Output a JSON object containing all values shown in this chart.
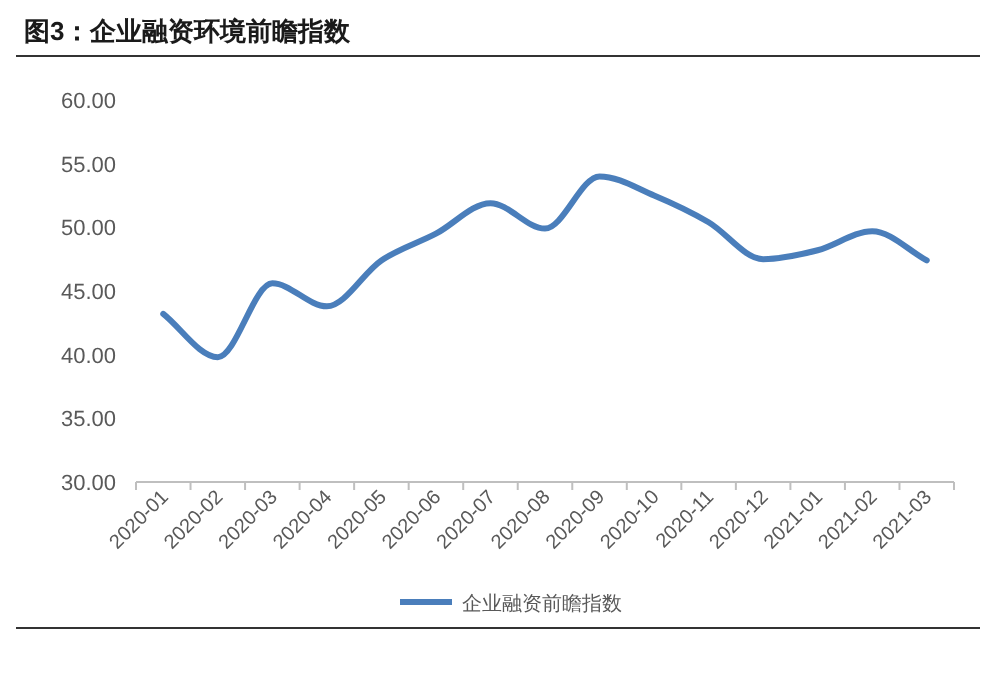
{
  "chart_data": {
    "type": "line",
    "title": "图3：企业融资环境前瞻指数",
    "categories": [
      "2020-01",
      "2020-02",
      "2020-03",
      "2020-04",
      "2020-05",
      "2020-06",
      "2020-07",
      "2020-08",
      "2020-09",
      "2020-10",
      "2020-11",
      "2020-12",
      "2021-01",
      "2021-02",
      "2021-03"
    ],
    "series": [
      {
        "name": "企业融资前瞻指数",
        "color": "#4a7ebb",
        "values": [
          43.2,
          39.8,
          45.6,
          43.8,
          47.4,
          49.5,
          51.9,
          49.9,
          54.0,
          52.5,
          50.4,
          47.5,
          48.2,
          49.7,
          47.4
        ]
      }
    ],
    "ylim": [
      30,
      60
    ],
    "yticks": [
      {
        "value": 30,
        "label": "30.00"
      },
      {
        "value": 35,
        "label": "35.00"
      },
      {
        "value": 40,
        "label": "40.00"
      },
      {
        "value": 45,
        "label": "45.00"
      },
      {
        "value": 50,
        "label": "50.00"
      },
      {
        "value": 55,
        "label": "55.00"
      },
      {
        "value": 60,
        "label": "60.00"
      }
    ],
    "grid": false,
    "legend": "bottom",
    "marker": "none",
    "line_style": "solid"
  }
}
